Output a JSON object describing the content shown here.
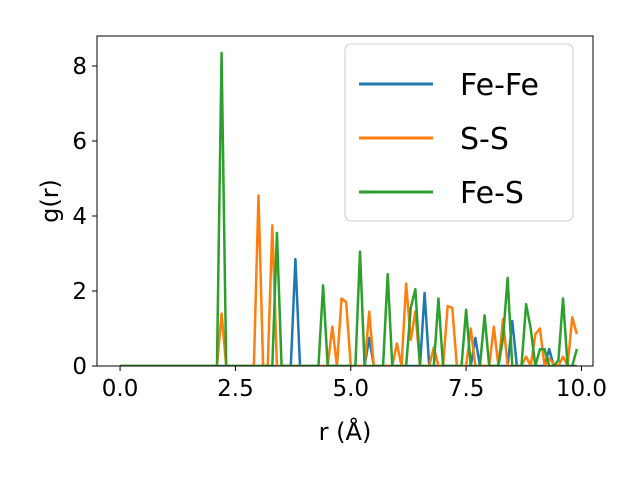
{
  "chart_data": {
    "type": "line",
    "xlabel": "r (Å)",
    "ylabel": "g(r)",
    "xlim": [
      -0.5,
      10.25
    ],
    "ylim": [
      0,
      8.8
    ],
    "xticks": [
      "0.0",
      "2.5",
      "5.0",
      "7.5",
      "10.0"
    ],
    "xtick_values": [
      0,
      2.5,
      5.0,
      7.5,
      10.0
    ],
    "yticks": [
      "0",
      "2",
      "4",
      "6",
      "8"
    ],
    "ytick_values": [
      0,
      2,
      4,
      6,
      8
    ],
    "grid": false,
    "legend_position": "top-right",
    "series": [
      {
        "name": "Fe-Fe",
        "color": "#1f77b4",
        "x": [
          0.0,
          3.7,
          3.8,
          3.9,
          5.3,
          5.4,
          5.5,
          6.5,
          6.6,
          6.7,
          7.6,
          7.7,
          7.8,
          8.4,
          8.5,
          8.6,
          9.2,
          9.3,
          9.4,
          9.9
        ],
        "y": [
          0.0,
          0.0,
          2.85,
          0.0,
          0.0,
          0.75,
          0.0,
          0.0,
          1.95,
          0.0,
          0.0,
          0.75,
          0.0,
          0.0,
          1.2,
          0.0,
          0.0,
          0.45,
          0.0,
          0.0
        ]
      },
      {
        "name": "S-S",
        "color": "#ff7f0e",
        "x": [
          0.0,
          2.1,
          2.2,
          2.3,
          2.9,
          3.0,
          3.1,
          3.2,
          3.3,
          3.4,
          4.5,
          4.6,
          4.7,
          4.8,
          4.9,
          5.0,
          5.1,
          5.2,
          5.3,
          5.4,
          5.5,
          5.9,
          6.0,
          6.1,
          6.2,
          6.3,
          6.4,
          6.5,
          6.7,
          6.8,
          6.9,
          7.0,
          7.1,
          7.2,
          7.3,
          7.5,
          7.6,
          7.7,
          7.8,
          8.0,
          8.1,
          8.2,
          8.3,
          8.4,
          8.7,
          8.8,
          8.9,
          9.0,
          9.1,
          9.2,
          9.3,
          9.4,
          9.5,
          9.6,
          9.7,
          9.8,
          9.9
        ],
        "y": [
          0.0,
          0.0,
          1.4,
          0.0,
          0.0,
          4.55,
          0.0,
          0.0,
          3.75,
          0.0,
          0.0,
          1.05,
          0.0,
          1.8,
          1.7,
          0.0,
          0.0,
          0.0,
          0.0,
          1.45,
          0.0,
          0.0,
          0.6,
          0.0,
          2.2,
          0.7,
          1.45,
          0.0,
          0.0,
          0.5,
          0.0,
          0.0,
          1.6,
          1.55,
          0.0,
          0.0,
          1.0,
          0.0,
          0.0,
          0.0,
          1.05,
          0.0,
          1.25,
          0.0,
          0.0,
          0.25,
          0.0,
          0.85,
          1.0,
          0.0,
          0.2,
          0.05,
          0.0,
          0.25,
          0.0,
          1.3,
          0.85
        ]
      },
      {
        "name": "Fe-S",
        "color": "#2ca02c",
        "x": [
          0.0,
          2.1,
          2.2,
          2.3,
          3.3,
          3.4,
          3.5,
          4.3,
          4.4,
          4.5,
          5.0,
          5.1,
          5.2,
          5.3,
          5.7,
          5.8,
          5.9,
          6.2,
          6.3,
          6.4,
          6.5,
          6.8,
          6.9,
          7.0,
          7.4,
          7.5,
          7.6,
          7.8,
          7.9,
          8.0,
          8.2,
          8.3,
          8.4,
          8.5,
          8.6,
          8.7,
          8.8,
          8.9,
          9.0,
          9.1,
          9.2,
          9.3,
          9.4,
          9.5,
          9.6,
          9.7,
          9.8,
          9.9
        ],
        "y": [
          0.0,
          0.0,
          8.35,
          0.0,
          0.0,
          3.55,
          0.0,
          0.0,
          2.15,
          0.0,
          0.0,
          0.0,
          3.05,
          0.0,
          0.0,
          2.45,
          0.0,
          0.0,
          1.55,
          2.05,
          0.0,
          0.0,
          1.8,
          0.0,
          0.0,
          1.5,
          0.0,
          0.0,
          1.35,
          0.0,
          0.0,
          0.75,
          2.35,
          0.0,
          0.0,
          0.0,
          1.65,
          1.0,
          0.0,
          0.45,
          0.45,
          0.0,
          0.0,
          0.15,
          1.8,
          0.0,
          0.0,
          0.45
        ]
      }
    ]
  }
}
